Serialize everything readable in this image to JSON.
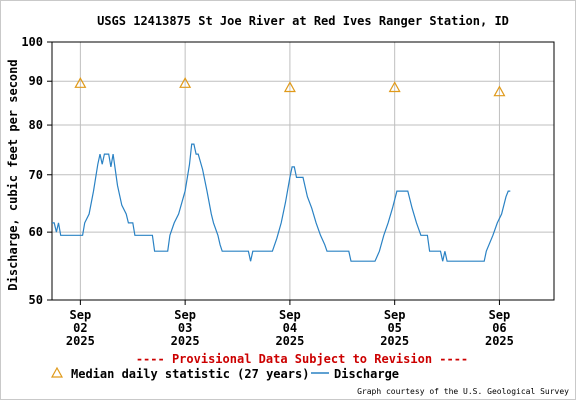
{
  "chart_data": {
    "type": "line",
    "title": "USGS 12413875 St Joe River at Red Ives Ranger Station, ID",
    "ylabel": "Discharge, cubic feet per second",
    "y_scale": "log",
    "ylim": [
      50,
      100
    ],
    "y_ticks": [
      50,
      60,
      70,
      80,
      90,
      100
    ],
    "xlim": [
      "2025-09-01 17:30",
      "2025-09-06 12:30"
    ],
    "x_ticks": [
      {
        "t": "2025-09-02 00:00",
        "label": [
          "Sep",
          "02",
          "2025"
        ]
      },
      {
        "t": "2025-09-03 00:00",
        "label": [
          "Sep",
          "03",
          "2025"
        ]
      },
      {
        "t": "2025-09-04 00:00",
        "label": [
          "Sep",
          "04",
          "2025"
        ]
      },
      {
        "t": "2025-09-05 00:00",
        "label": [
          "Sep",
          "05",
          "2025"
        ]
      },
      {
        "t": "2025-09-06 00:00",
        "label": [
          "Sep",
          "06",
          "2025"
        ]
      }
    ],
    "grid": true,
    "legend_position": "bottom",
    "series": [
      {
        "name": "Discharge",
        "color": "#2a82c4",
        "points": [
          [
            "2025-09-01 17:30",
            61.5
          ],
          [
            "2025-09-01 18:00",
            61.5
          ],
          [
            "2025-09-01 18:30",
            60
          ],
          [
            "2025-09-01 19:00",
            61.5
          ],
          [
            "2025-09-01 19:30",
            59.5
          ],
          [
            "2025-09-02 00:30",
            59.5
          ],
          [
            "2025-09-02 01:00",
            61.5
          ],
          [
            "2025-09-02 02:00",
            63
          ],
          [
            "2025-09-02 03:00",
            67
          ],
          [
            "2025-09-02 04:00",
            72
          ],
          [
            "2025-09-02 04:30",
            74
          ],
          [
            "2025-09-02 05:00",
            72
          ],
          [
            "2025-09-02 05:30",
            74
          ],
          [
            "2025-09-02 06:30",
            74
          ],
          [
            "2025-09-02 07:00",
            71.5
          ],
          [
            "2025-09-02 07:30",
            74
          ],
          [
            "2025-09-02 08:30",
            68
          ],
          [
            "2025-09-02 09:30",
            64.5
          ],
          [
            "2025-09-02 10:30",
            63
          ],
          [
            "2025-09-02 11:00",
            61.5
          ],
          [
            "2025-09-02 12:00",
            61.5
          ],
          [
            "2025-09-02 12:30",
            59.5
          ],
          [
            "2025-09-02 16:30",
            59.5
          ],
          [
            "2025-09-02 17:00",
            57
          ],
          [
            "2025-09-02 20:00",
            57
          ],
          [
            "2025-09-02 20:30",
            59.5
          ],
          [
            "2025-09-02 21:30",
            61.5
          ],
          [
            "2025-09-02 22:30",
            63
          ],
          [
            "2025-09-03 00:00",
            67
          ],
          [
            "2025-09-03 01:00",
            72
          ],
          [
            "2025-09-03 01:30",
            76
          ],
          [
            "2025-09-03 02:00",
            76
          ],
          [
            "2025-09-03 02:30",
            74
          ],
          [
            "2025-09-03 03:00",
            74
          ],
          [
            "2025-09-03 04:00",
            71
          ],
          [
            "2025-09-03 05:00",
            67
          ],
          [
            "2025-09-03 06:00",
            63
          ],
          [
            "2025-09-03 06:30",
            61.5
          ],
          [
            "2025-09-03 07:30",
            59.5
          ],
          [
            "2025-09-03 08:00",
            58
          ],
          [
            "2025-09-03 08:30",
            57
          ],
          [
            "2025-09-03 14:30",
            57
          ],
          [
            "2025-09-03 15:00",
            55.5
          ],
          [
            "2025-09-03 15:30",
            57
          ],
          [
            "2025-09-03 20:00",
            57
          ],
          [
            "2025-09-03 21:00",
            59
          ],
          [
            "2025-09-03 22:00",
            61.5
          ],
          [
            "2025-09-03 23:00",
            65
          ],
          [
            "2025-09-04 00:00",
            69.5
          ],
          [
            "2025-09-04 00:30",
            71.5
          ],
          [
            "2025-09-04 01:00",
            71.5
          ],
          [
            "2025-09-04 01:30",
            69.5
          ],
          [
            "2025-09-04 03:00",
            69.5
          ],
          [
            "2025-09-04 04:00",
            66
          ],
          [
            "2025-09-04 05:00",
            64
          ],
          [
            "2025-09-04 06:00",
            61.5
          ],
          [
            "2025-09-04 07:00",
            59.5
          ],
          [
            "2025-09-04 08:00",
            58
          ],
          [
            "2025-09-04 08:30",
            57
          ],
          [
            "2025-09-04 13:30",
            57
          ],
          [
            "2025-09-04 14:00",
            55.5
          ],
          [
            "2025-09-04 19:30",
            55.5
          ],
          [
            "2025-09-04 20:30",
            57
          ],
          [
            "2025-09-04 21:30",
            59.5
          ],
          [
            "2025-09-04 22:30",
            61.5
          ],
          [
            "2025-09-04 23:30",
            64
          ],
          [
            "2025-09-05 00:30",
            67
          ],
          [
            "2025-09-05 03:00",
            67
          ],
          [
            "2025-09-05 04:00",
            64
          ],
          [
            "2025-09-05 05:00",
            61.5
          ],
          [
            "2025-09-05 06:00",
            59.5
          ],
          [
            "2025-09-05 07:30",
            59.5
          ],
          [
            "2025-09-05 08:00",
            57
          ],
          [
            "2025-09-05 10:30",
            57
          ],
          [
            "2025-09-05 11:00",
            55.5
          ],
          [
            "2025-09-05 11:30",
            57
          ],
          [
            "2025-09-05 12:00",
            55.5
          ],
          [
            "2025-09-05 20:30",
            55.5
          ],
          [
            "2025-09-05 21:00",
            57
          ],
          [
            "2025-09-05 22:30",
            59.5
          ],
          [
            "2025-09-05 23:30",
            61.5
          ],
          [
            "2025-09-06 00:30",
            63
          ],
          [
            "2025-09-06 01:30",
            66
          ],
          [
            "2025-09-06 02:00",
            67
          ],
          [
            "2025-09-06 02:30",
            67
          ]
        ]
      },
      {
        "name": "Median daily statistic (27 years)",
        "color": "#e09a1a",
        "marker": "triangle",
        "points": [
          [
            "2025-09-02 00:00",
            89.5
          ],
          [
            "2025-09-03 00:00",
            89.5
          ],
          [
            "2025-09-04 00:00",
            88.5
          ],
          [
            "2025-09-05 00:00",
            88.5
          ],
          [
            "2025-09-06 00:00",
            87.5
          ]
        ]
      }
    ]
  },
  "provisional_note": "---- Provisional Data Subject to Revision ----",
  "legend": {
    "median": "Median daily statistic (27 years)",
    "discharge": "Discharge"
  },
  "credit": "Graph courtesy of the U.S. Geological Survey",
  "colors": {
    "note": "#cc0000",
    "grid": "#bfbfbf",
    "discharge": "#2a82c4",
    "median": "#e09a1a"
  }
}
